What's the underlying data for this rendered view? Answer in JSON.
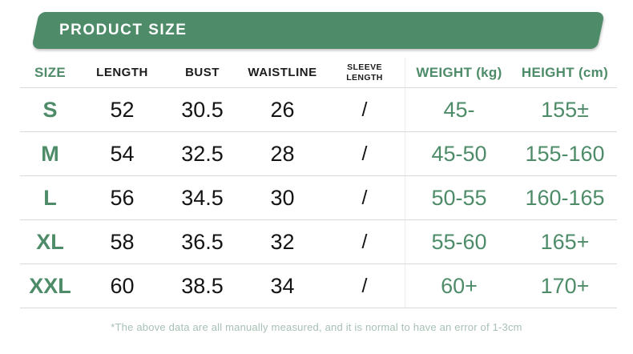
{
  "banner": {
    "title": "PRODUCT SIZE"
  },
  "chart_data": {
    "type": "table",
    "title": "PRODUCT SIZE",
    "columns": [
      "SIZE",
      "LENGTH",
      "BUST",
      "WAISTLINE",
      "SLEEVE LENGTH",
      "WEIGHT (kg)",
      "HEIGHT (cm)"
    ],
    "rows": [
      [
        "S",
        "52",
        "30.5",
        "26",
        "/",
        "45-",
        "155±"
      ],
      [
        "M",
        "54",
        "32.5",
        "28",
        "/",
        "45-50",
        "155-160"
      ],
      [
        "L",
        "56",
        "34.5",
        "30",
        "/",
        "50-55",
        "160-165"
      ],
      [
        "XL",
        "58",
        "36.5",
        "32",
        "/",
        "55-60",
        "165+"
      ],
      [
        "XXL",
        "60",
        "38.5",
        "34",
        "/",
        "60+",
        "170+"
      ]
    ],
    "note": "*The above data are all manually measured, and it is normal to have an error of 1-3cm"
  },
  "colors": {
    "accent_green": "#4e8c69",
    "banner_text": "#ffffff",
    "value_black": "#141414",
    "note_green": "#a8c0b4",
    "row_divider": "#d9d9d9",
    "column_divider": "#edece6"
  }
}
